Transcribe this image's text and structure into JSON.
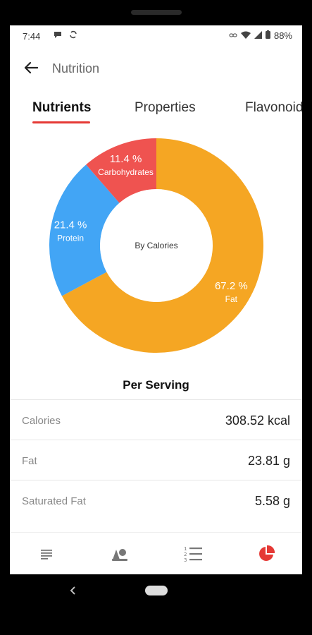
{
  "status_bar": {
    "time": "7:44",
    "battery": "88%",
    "icons": [
      "chat-icon",
      "sync-icon",
      "link-icon",
      "wifi-icon",
      "signal-icon",
      "battery-icon"
    ]
  },
  "app_bar": {
    "title": "Nutrition",
    "back_icon": "arrow-left-icon"
  },
  "tabs": [
    {
      "label": "Nutrients",
      "active": true
    },
    {
      "label": "Properties",
      "active": false
    },
    {
      "label": "Flavonoids",
      "active": false
    }
  ],
  "chart_data": {
    "type": "pie",
    "center_label": "By Calories",
    "slices": [
      {
        "name": "Fat",
        "value": 67.2,
        "label": "67.2 %",
        "color": "#f5a623"
      },
      {
        "name": "Protein",
        "value": 21.4,
        "label": "21.4 %",
        "color": "#42a5f5"
      },
      {
        "name": "Carbohydrates",
        "value": 11.4,
        "label": "11.4 %",
        "color": "#ef5350"
      }
    ]
  },
  "per_serving": {
    "title": "Per Serving",
    "rows": [
      {
        "label": "Calories",
        "value": "308.52 kcal"
      },
      {
        "label": "Fat",
        "value": "23.81 g"
      },
      {
        "label": "Saturated Fat",
        "value": "5.58 g"
      }
    ]
  },
  "bottom_nav": [
    {
      "name": "description-icon",
      "active": false
    },
    {
      "name": "ingredients-icon",
      "active": false
    },
    {
      "name": "numbered-list-icon",
      "active": false
    },
    {
      "name": "pie-chart-icon",
      "active": true
    }
  ],
  "colors": {
    "accent": "#e53935",
    "nav_inactive": "#777777"
  }
}
